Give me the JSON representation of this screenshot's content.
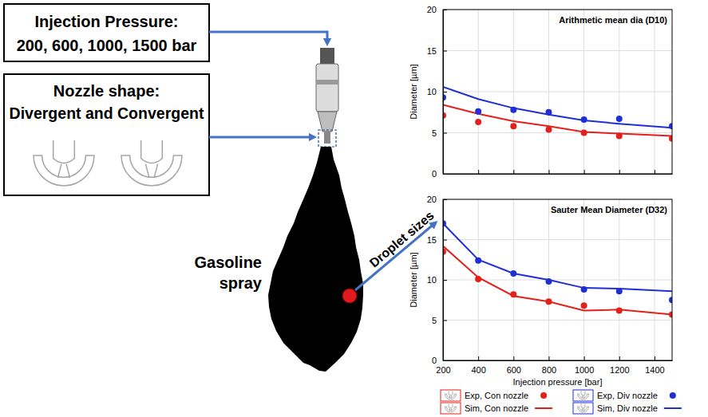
{
  "chart_data": [
    {
      "type": "line",
      "title": "Arithmetic mean dia (D10)",
      "y_label": "Diameter [µm]",
      "x": [
        200,
        400,
        600,
        800,
        1000,
        1200,
        1500
      ],
      "series": [
        {
          "name": "Exp, Con nozzle",
          "type": "scatter",
          "marker": "circle",
          "color": "#e3201b",
          "values": [
            7.1,
            6.3,
            5.8,
            5.4,
            5.0,
            4.6,
            4.3
          ]
        },
        {
          "name": "Sim, Con nozzle",
          "type": "line",
          "line_style": "solid",
          "color": "#e3201b",
          "values": [
            8.4,
            7.3,
            6.4,
            5.8,
            5.1,
            4.9,
            4.6
          ]
        },
        {
          "name": "Exp, Div nozzle",
          "type": "scatter",
          "marker": "circle",
          "color": "#1f2fd6",
          "values": [
            9.3,
            7.6,
            7.8,
            7.5,
            6.6,
            6.7,
            5.8
          ]
        },
        {
          "name": "Sim, Div nozzle",
          "type": "line",
          "line_style": "solid",
          "color": "#1f2fd6",
          "values": [
            10.6,
            9.1,
            8.0,
            7.2,
            6.5,
            6.1,
            5.6
          ]
        }
      ],
      "xlim": [
        200,
        1500
      ],
      "xticks": [
        200,
        400,
        600,
        800,
        1000,
        1200,
        1400
      ],
      "ylim": [
        0,
        20
      ],
      "yticks": [
        0,
        5,
        10,
        15,
        20
      ],
      "grid": true,
      "legend": "bottom",
      "tick_labels": "y"
    },
    {
      "type": "line",
      "title": "Sauter Mean Diameter (D32)",
      "x_label": "Injection pressure [bar]",
      "y_label": "Diameter [µm]",
      "x": [
        200,
        400,
        600,
        800,
        1000,
        1200,
        1500
      ],
      "series": [
        {
          "type": "scatter",
          "marker": "circle",
          "color": "#e3201b",
          "values": [
            13.5,
            10.1,
            8.2,
            7.3,
            6.8,
            6.2,
            5.7
          ]
        },
        {
          "type": "line",
          "line_style": "solid",
          "color": "#e3201b",
          "values": [
            14.2,
            10.3,
            8.0,
            7.3,
            6.2,
            6.3,
            5.7
          ]
        },
        {
          "type": "scatter",
          "marker": "circle",
          "color": "#1f2fd6",
          "values": [
            17.0,
            12.4,
            10.8,
            9.8,
            8.8,
            8.6,
            7.5
          ]
        },
        {
          "type": "line",
          "line_style": "solid",
          "color": "#1f2fd6",
          "values": [
            17.0,
            12.5,
            10.8,
            10.0,
            9.0,
            8.9,
            8.6
          ]
        }
      ],
      "xlim": [
        200,
        1500
      ],
      "xticks": [
        200,
        400,
        600,
        800,
        1000,
        1200,
        1400
      ],
      "ylim": [
        0,
        20
      ],
      "yticks": [
        0,
        5,
        10,
        15,
        20
      ],
      "grid": true
    }
  ],
  "diagram": {
    "boxes": [
      {
        "title": "Injection Pressure:",
        "text": "200, 600, 1000, 1500 bar"
      },
      {
        "title": "Nozzle shape:",
        "text": "Divergent and Convergent"
      }
    ],
    "spray_label": [
      "Gasoline",
      "spray"
    ],
    "arrow_label": "Droplet sizes"
  }
}
